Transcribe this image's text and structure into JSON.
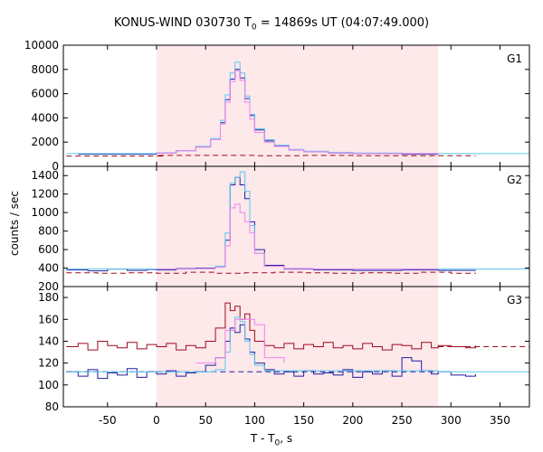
{
  "figure": {
    "title_main": "KONUS-WIND 030730 T",
    "title_sub": "0",
    "title_rest": " = 14869s UT (04:07:49.000)",
    "ylabel": "counts / sec",
    "xlabel_main": "T - T",
    "xlabel_sub": "0",
    "xlabel_rest": ", s"
  },
  "colors": {
    "shade": "#fde8ea",
    "dark_red": "#9e0a1e",
    "navy": "#1f1fa0",
    "light_blue": "#5cc8f0",
    "pink": "#ee82ee",
    "axis": "#000000"
  },
  "chart_data": {
    "type": "line",
    "x_axis": {
      "range": [
        -95,
        380
      ],
      "ticks": [
        -50,
        0,
        50,
        100,
        150,
        200,
        250,
        300,
        350
      ]
    },
    "shaded_interval": [
      0,
      287
    ],
    "panels": [
      {
        "label": "G1",
        "ylim": [
          0,
          10000
        ],
        "yticks": [
          0,
          2000,
          4000,
          6000,
          8000,
          10000
        ],
        "series": [
          {
            "role": "background",
            "color": "dark_red",
            "x": [
              -92,
              8,
              0,
              50,
              100,
              150,
              200,
              250,
              325
            ],
            "y": [
              850,
              850,
              900,
              900,
              880,
              900,
              880,
              880,
              880
            ]
          },
          {
            "role": "counts",
            "color": "navy",
            "x": [
              -80,
              -40,
              -10,
              0,
              20,
              40,
              55,
              65,
              70,
              75,
              80,
              85,
              90,
              95,
              100,
              110,
              120,
              135,
              150,
              175,
              200,
              250,
              287
            ],
            "y": [
              1000,
              1000,
              1000,
              1100,
              1300,
              1600,
              2200,
              3600,
              5500,
              7200,
              8000,
              7300,
              5600,
              4200,
              3000,
              2100,
              1700,
              1350,
              1200,
              1100,
              1050,
              1000,
              1000
            ]
          },
          {
            "role": "model",
            "color": "light_blue",
            "x": [
              -92,
              -40,
              0,
              20,
              40,
              55,
              65,
              70,
              75,
              80,
              85,
              90,
              95,
              100,
              110,
              120,
              135,
              150,
              175,
              200,
              250,
              287,
              380
            ],
            "y": [
              1050,
              1050,
              1100,
              1300,
              1650,
              2300,
              3800,
              5900,
              7700,
              8600,
              7700,
              5800,
              4300,
              3100,
              2200,
              1750,
              1400,
              1250,
              1150,
              1100,
              1050,
              1050,
              1050
            ]
          },
          {
            "role": "model2",
            "color": "pink",
            "x": [
              0,
              20,
              40,
              55,
              65,
              70,
              75,
              80,
              85,
              90,
              95,
              100,
              110,
              120,
              135,
              150,
              175,
              200,
              287
            ],
            "y": [
              1100,
              1300,
              1600,
              2200,
              3500,
              5300,
              7000,
              7900,
              7100,
              5300,
              3900,
              2800,
              2000,
              1650,
              1350,
              1200,
              1100,
              1050,
              1050
            ]
          }
        ]
      },
      {
        "label": "G2",
        "ylim": [
          200,
          1500
        ],
        "yticks": [
          200,
          400,
          600,
          800,
          1000,
          1200,
          1400
        ],
        "series": [
          {
            "role": "background",
            "color": "dark_red",
            "x": [
              -92,
              -60,
              -30,
              0,
              30,
              60,
              90,
              120,
              150,
              180,
              210,
              240,
              270,
              300,
              325
            ],
            "y": [
              350,
              345,
              350,
              345,
              355,
              345,
              350,
              355,
              350,
              345,
              350,
              345,
              355,
              345,
              350
            ]
          },
          {
            "role": "counts",
            "color": "navy",
            "x": [
              -92,
              -70,
              -50,
              -30,
              -10,
              0,
              20,
              40,
              60,
              70,
              75,
              80,
              85,
              90,
              95,
              100,
              110,
              130,
              160,
              200,
              250,
              287,
              325
            ],
            "y": [
              380,
              370,
              390,
              375,
              385,
              380,
              395,
              400,
              420,
              700,
              1300,
              1380,
              1300,
              1150,
              900,
              600,
              430,
              390,
              380,
              375,
              380,
              375,
              380
            ]
          },
          {
            "role": "model",
            "color": "light_blue",
            "x": [
              -92,
              -40,
              0,
              40,
              60,
              70,
              75,
              80,
              85,
              90,
              95,
              100,
              110,
              130,
              160,
              200,
              287,
              380
            ],
            "y": [
              390,
              390,
              390,
              395,
              420,
              780,
              1320,
              1380,
              1440,
              1230,
              860,
              560,
              420,
              395,
              390,
              390,
              390,
              390
            ]
          },
          {
            "role": "model2",
            "color": "pink",
            "x": [
              0,
              40,
              60,
              70,
              75,
              80,
              85,
              90,
              95,
              100,
              110,
              130,
              160,
              287
            ],
            "y": [
              390,
              395,
              410,
              640,
              1050,
              1090,
              1000,
              900,
              780,
              560,
              420,
              395,
              390,
              390
            ]
          }
        ]
      },
      {
        "label": "G3",
        "ylim": [
          80,
          190
        ],
        "yticks": [
          80,
          100,
          120,
          140,
          160,
          180
        ],
        "series": [
          {
            "role": "counts_red",
            "color": "dark_red",
            "x": [
              -92,
              -80,
              -70,
              -60,
              -50,
              -40,
              -30,
              -20,
              -10,
              0,
              10,
              20,
              30,
              40,
              50,
              60,
              70,
              75,
              80,
              85,
              90,
              95,
              100,
              110,
              120,
              130,
              140,
              150,
              160,
              170,
              180,
              190,
              200,
              210,
              220,
              230,
              240,
              250,
              260,
              270,
              280,
              287,
              300,
              315,
              325
            ],
            "y": [
              135,
              138,
              132,
              140,
              136,
              134,
              139,
              133,
              137,
              135,
              138,
              132,
              136,
              134,
              140,
              152,
              175,
              168,
              172,
              160,
              165,
              150,
              140,
              136,
              134,
              138,
              133,
              137,
              135,
              139,
              134,
              136,
              133,
              138,
              135,
              132,
              137,
              136,
              133,
              139,
              134,
              136,
              135,
              134,
              136
            ]
          },
          {
            "role": "background_red",
            "color": "dark_red",
            "x": [
              287,
              380
            ],
            "y": [
              135,
              135
            ]
          },
          {
            "role": "counts_navy",
            "color": "navy",
            "x": [
              -92,
              -80,
              -70,
              -60,
              -50,
              -40,
              -30,
              -20,
              -10,
              0,
              10,
              20,
              30,
              40,
              50,
              60,
              70,
              75,
              80,
              85,
              90,
              95,
              100,
              110,
              120,
              130,
              140,
              150,
              160,
              170,
              180,
              190,
              200,
              210,
              220,
              230,
              240,
              250,
              260,
              270,
              280,
              287,
              300,
              315,
              325
            ],
            "y": [
              112,
              108,
              114,
              106,
              111,
              109,
              115,
              107,
              112,
              110,
              113,
              108,
              111,
              112,
              118,
              125,
              140,
              152,
              148,
              155,
              142,
              130,
              120,
              114,
              110,
              112,
              108,
              113,
              110,
              111,
              109,
              114,
              107,
              112,
              110,
              113,
              108,
              125,
              122,
              113,
              110,
              112,
              109,
              108,
              110
            ]
          },
          {
            "role": "background_navy",
            "color": "navy",
            "x": [
              -92,
              287
            ],
            "y": [
              112,
              112
            ]
          },
          {
            "role": "model",
            "color": "light_blue",
            "x": [
              -92,
              0,
              50,
              60,
              70,
              75,
              80,
              85,
              90,
              95,
              100,
              110,
              287,
              380
            ],
            "y": [
              112,
              112,
              112,
              114,
              130,
              150,
              162,
              158,
              140,
              128,
              118,
              113,
              112,
              112
            ]
          },
          {
            "role": "model2",
            "color": "pink",
            "x": [
              40,
              60,
              70,
              80,
              90,
              100,
              110,
              130
            ],
            "y": [
              120,
              125,
              150,
              160,
              160,
              155,
              125,
              120
            ]
          }
        ]
      }
    ]
  }
}
